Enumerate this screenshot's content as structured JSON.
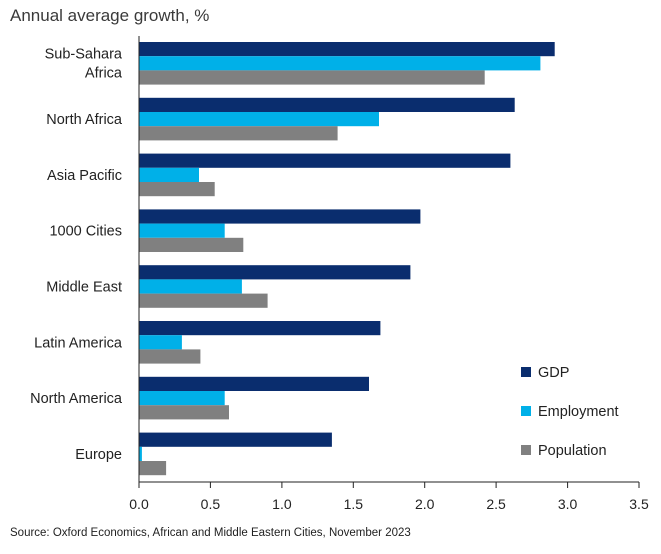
{
  "chart_data": {
    "type": "bar",
    "orientation": "horizontal",
    "title": "Annual average growth, %",
    "categories": [
      [
        "Sub-Sahara",
        "Africa"
      ],
      [
        "North Africa"
      ],
      [
        "Asia Pacific"
      ],
      [
        "1000 Cities"
      ],
      [
        "Middle East"
      ],
      [
        "Latin America"
      ],
      [
        "North America"
      ],
      [
        "Europe"
      ]
    ],
    "series": [
      {
        "name": "GDP",
        "color": "#0a2d6e",
        "values": [
          2.91,
          2.63,
          2.6,
          1.97,
          1.9,
          1.69,
          1.61,
          1.35
        ]
      },
      {
        "name": "Employment",
        "color": "#00b0e8",
        "values": [
          2.81,
          1.68,
          0.42,
          0.6,
          0.72,
          0.3,
          0.6,
          0.02
        ]
      },
      {
        "name": "Population",
        "color": "#808080",
        "values": [
          2.42,
          1.39,
          0.53,
          0.73,
          0.9,
          0.43,
          0.63,
          0.19
        ]
      }
    ],
    "xlim": [
      0,
      3.5
    ],
    "xticks": [
      "0.0",
      "0.5",
      "1.0",
      "1.5",
      "2.0",
      "2.5",
      "3.0",
      "3.5"
    ],
    "xtick_values": [
      0,
      0.5,
      1.0,
      1.5,
      2.0,
      2.5,
      3.0,
      3.5
    ],
    "grid": false,
    "legend_position": "bottom-right"
  },
  "source": "Source: Oxford Economics, African and Middle Eastern Cities, November 2023"
}
